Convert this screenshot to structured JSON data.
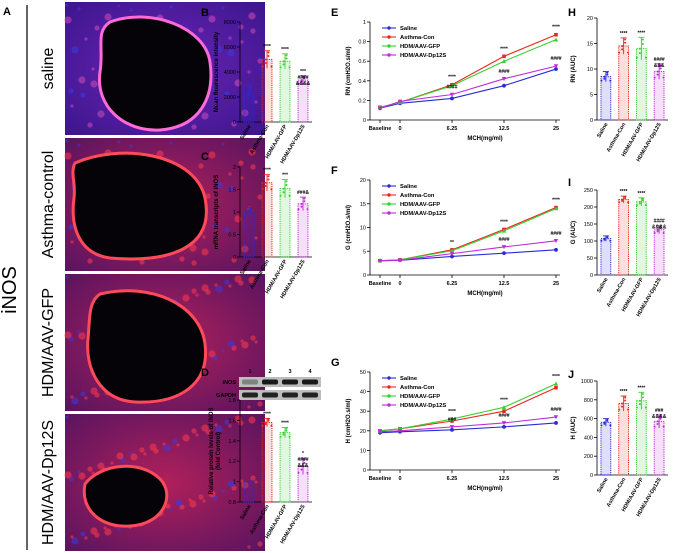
{
  "figure": {
    "panel_a_letter": "A",
    "side_label": "iNOS",
    "row_labels": [
      "saline",
      "Asthma-control",
      "HDM/AAV-GFP",
      "HDM/AAV-Dp12S"
    ]
  },
  "colors": {
    "saline": "#2b2bd6",
    "asthma": "#e8281e",
    "gfp": "#37d12f",
    "dp12s": "#c02bd8"
  },
  "groups": [
    "Saline",
    "Asthma-Con",
    "HDM/AAV-GFP",
    "HDM/AAV-Dp12S"
  ],
  "chart_data": [
    {
      "id": "B",
      "type": "bar",
      "letter": "B",
      "ylabel": "Mean flourescence intensity",
      "ylim": [
        0,
        8000
      ],
      "ticks": [
        0,
        2000,
        4000,
        6000,
        8000
      ],
      "values": [
        2350,
        5000,
        4850,
        3350
      ],
      "errors": [
        550,
        700,
        600,
        350
      ],
      "annotations": [
        "",
        "****",
        "****",
        "***\n####\n&&&&"
      ]
    },
    {
      "id": "C",
      "type": "bar",
      "letter": "C",
      "ylabel": "mRNA transcripts of iNOS",
      "ylim": [
        0.0,
        2.0
      ],
      "ticks": [
        0.0,
        0.5,
        1.0,
        1.5,
        2.0
      ],
      "values": [
        1.0,
        1.65,
        1.52,
        1.18
      ],
      "errors": [
        0.1,
        0.18,
        0.2,
        0.15
      ],
      "annotations": [
        "",
        "****",
        "***",
        "###&"
      ]
    },
    {
      "id": "D",
      "type": "bar",
      "letter": "D",
      "ylabel": "Relative protein levels of iNOS\n(fold Control)",
      "ylim": [
        0.8,
        1.8
      ],
      "ticks": [
        0.8,
        1.0,
        1.2,
        1.4,
        1.6,
        1.8
      ],
      "values": [
        1.0,
        1.58,
        1.48,
        1.15
      ],
      "errors": [
        0.0,
        0.04,
        0.05,
        0.08
      ],
      "annotations": [
        "",
        "****",
        "****",
        "*\n####\n&&&"
      ],
      "blot": {
        "lane_numbers": [
          "1",
          "2",
          "3",
          "4"
        ],
        "rows": [
          "iNOS",
          "GAPDH"
        ]
      }
    },
    {
      "id": "E",
      "type": "line",
      "letter": "E",
      "ylabel": "R_N (cmH2O.s/ml)",
      "xlabel": "MCH(mg/ml)",
      "categories": [
        "Baseline",
        "0",
        "6.25",
        "12.5",
        "25"
      ],
      "ylim": [
        0,
        1.0
      ],
      "ticks": [
        0.0,
        0.2,
        0.4,
        0.6,
        0.8,
        1.0
      ],
      "series": [
        {
          "name": "Saline",
          "values": [
            0.12,
            0.17,
            0.22,
            0.35,
            0.52
          ]
        },
        {
          "name": "Asthma-Con",
          "values": [
            0.13,
            0.18,
            0.36,
            0.65,
            0.87
          ]
        },
        {
          "name": "HDM/AAV-GFP",
          "values": [
            0.13,
            0.18,
            0.35,
            0.6,
            0.82
          ]
        },
        {
          "name": "HDM/AAV-Dp12S",
          "values": [
            0.12,
            0.19,
            0.26,
            0.42,
            0.55
          ]
        }
      ],
      "annotations": [
        {
          "x": "6.25",
          "text": "****\n####"
        },
        {
          "x": "12.5",
          "text": "****\n####"
        },
        {
          "x": "25",
          "text": "****\n####"
        }
      ]
    },
    {
      "id": "F",
      "type": "line",
      "letter": "F",
      "ylabel": "G (cmH2O.s/ml)",
      "xlabel": "MCH(mg/ml)",
      "categories": [
        "Baseline",
        "0",
        "6.25",
        "12.5",
        "25"
      ],
      "ylim": [
        0,
        20
      ],
      "ticks": [
        0,
        5,
        10,
        15,
        20
      ],
      "series": [
        {
          "name": "Saline",
          "values": [
            3.0,
            3.1,
            3.9,
            4.6,
            5.3
          ]
        },
        {
          "name": "Asthma-Con",
          "values": [
            3.0,
            3.2,
            5.3,
            9.6,
            14.2
          ]
        },
        {
          "name": "HDM/AAV-GFP",
          "values": [
            3.0,
            3.2,
            5.1,
            9.3,
            14.0
          ]
        },
        {
          "name": "HDM/AAV-Dp12S",
          "values": [
            3.0,
            3.1,
            4.5,
            5.9,
            7.2
          ]
        }
      ],
      "annotations": [
        {
          "x": "6.25",
          "text": "**"
        },
        {
          "x": "12.5",
          "text": "****\n####"
        },
        {
          "x": "25",
          "text": "****\n####"
        }
      ]
    },
    {
      "id": "G",
      "type": "line",
      "letter": "G",
      "ylabel": "H (cmH2O.s/ml)",
      "xlabel": "MCH(mg/ml)",
      "categories": [
        "Baseline",
        "0",
        "6.25",
        "12.5",
        "25"
      ],
      "ylim": [
        0,
        50
      ],
      "ticks": [
        0,
        10,
        20,
        30,
        40,
        50
      ],
      "series": [
        {
          "name": "Saline",
          "values": [
            19,
            19.5,
            20.5,
            22,
            24
          ]
        },
        {
          "name": "Asthma-Con",
          "values": [
            20,
            21,
            25,
            30,
            42
          ]
        },
        {
          "name": "HDM/AAV-GFP",
          "values": [
            20,
            21,
            26,
            32,
            44
          ]
        },
        {
          "name": "HDM/AAV-Dp12S",
          "values": [
            19.5,
            20,
            22,
            24,
            27
          ]
        }
      ],
      "annotations": [
        {
          "x": "6.25",
          "text": "****\n###"
        },
        {
          "x": "12.5",
          "text": "****\n####"
        },
        {
          "x": "25",
          "text": "****\n####"
        }
      ]
    },
    {
      "id": "H",
      "type": "bar",
      "letter": "H",
      "ylabel": "R_N (AUC)",
      "ylim": [
        0,
        20
      ],
      "ticks": [
        0,
        5,
        10,
        15,
        20
      ],
      "values": [
        8.5,
        14.5,
        14.0,
        9.5
      ],
      "errors": [
        1.0,
        1.6,
        2.2,
        1.5
      ],
      "annotations": [
        "",
        "****",
        "****",
        "####\n&&&"
      ]
    },
    {
      "id": "I",
      "type": "bar",
      "letter": "I",
      "ylabel": "G (AUC)",
      "ylim": [
        0,
        250
      ],
      "ticks": [
        0,
        50,
        100,
        150,
        200,
        250
      ],
      "values": [
        107,
        222,
        215,
        133
      ],
      "errors": [
        8,
        10,
        12,
        12
      ],
      "annotations": [
        "",
        "****",
        "****",
        "####\n&&&&"
      ]
    },
    {
      "id": "J",
      "type": "bar",
      "letter": "J",
      "ylabel": "H (AUC)",
      "ylim": [
        0,
        1000
      ],
      "ticks": [
        0,
        200,
        400,
        600,
        800,
        1000
      ],
      "values": [
        560,
        760,
        790,
        570
      ],
      "errors": [
        40,
        80,
        90,
        70
      ],
      "annotations": [
        "",
        "****",
        "****",
        "###\n&&&&"
      ]
    }
  ]
}
